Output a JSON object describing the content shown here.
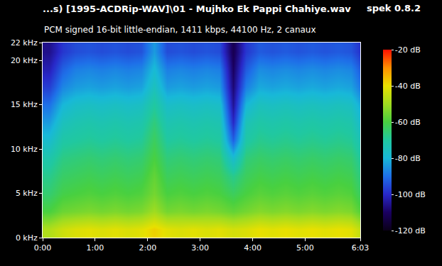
{
  "chart_data": {
    "type": "heatmap",
    "title": "...s) [1995-ACDRip-WAV]\\01 - Mujhko Ek Pappi Chahiye.wav",
    "subtitle": "PCM signed 16-bit little-endian, 1411 kbps, 44100 Hz, 2 canaux",
    "annotations": [
      "spek 0.8.2"
    ],
    "grid": false,
    "x": [
      7.5,
      22.5,
      37.5,
      52.5,
      67.5,
      82.5,
      97.5,
      112.5,
      127.5,
      142.5,
      157.5,
      172.5,
      187.5,
      202.5,
      217.5,
      232.5,
      247.5,
      262.5,
      277.5,
      292.5,
      307.5,
      322.5,
      337.5,
      352.5,
      361.5
    ],
    "y": [
      1,
      3,
      5,
      7,
      9,
      11,
      13,
      15,
      17,
      19,
      21
    ],
    "z": [
      [
        -48,
        -44,
        -42,
        -41,
        -42,
        -41,
        -42,
        -41,
        -38,
        -41,
        -42,
        -41,
        -42,
        -41,
        -43,
        -42,
        -40,
        -41,
        -40,
        -41,
        -40,
        -41,
        -40,
        -41,
        -45
      ],
      [
        -60,
        -56,
        -55,
        -54,
        -55,
        -54,
        -55,
        -54,
        -50,
        -55,
        -54,
        -55,
        -54,
        -55,
        -57,
        -55,
        -53,
        -54,
        -53,
        -54,
        -53,
        -54,
        -53,
        -54,
        -58
      ],
      [
        -65,
        -61,
        -60,
        -59,
        -60,
        -59,
        -60,
        -59,
        -55,
        -60,
        -59,
        -60,
        -59,
        -60,
        -63,
        -60,
        -58,
        -59,
        -58,
        -59,
        -58,
        -59,
        -58,
        -59,
        -63
      ],
      [
        -68,
        -64,
        -63,
        -62,
        -63,
        -62,
        -63,
        -62,
        -57,
        -63,
        -62,
        -63,
        -62,
        -63,
        -68,
        -63,
        -61,
        -62,
        -61,
        -62,
        -61,
        -62,
        -61,
        -62,
        -66
      ],
      [
        -72,
        -67,
        -66,
        -65,
        -66,
        -65,
        -66,
        -65,
        -60,
        -66,
        -65,
        -66,
        -65,
        -66,
        -78,
        -66,
        -64,
        -65,
        -64,
        -65,
        -64,
        -65,
        -64,
        -65,
        -69
      ],
      [
        -78,
        -71,
        -70,
        -69,
        -70,
        -69,
        -70,
        -69,
        -63,
        -70,
        -69,
        -70,
        -69,
        -70,
        -92,
        -71,
        -68,
        -69,
        -68,
        -69,
        -68,
        -69,
        -68,
        -69,
        -73
      ],
      [
        -84,
        -75,
        -73,
        -72,
        -73,
        -72,
        -73,
        -72,
        -66,
        -73,
        -72,
        -73,
        -72,
        -73,
        -100,
        -74,
        -71,
        -72,
        -71,
        -72,
        -71,
        -72,
        -71,
        -72,
        -77
      ],
      [
        -90,
        -80,
        -77,
        -76,
        -77,
        -76,
        -77,
        -76,
        -70,
        -77,
        -76,
        -77,
        -76,
        -77,
        -105,
        -80,
        -75,
        -76,
        -75,
        -76,
        -75,
        -76,
        -75,
        -76,
        -81
      ],
      [
        -97,
        -87,
        -84,
        -83,
        -84,
        -83,
        -84,
        -83,
        -75,
        -84,
        -83,
        -84,
        -83,
        -84,
        -108,
        -88,
        -82,
        -83,
        -82,
        -83,
        -82,
        -83,
        -82,
        -83,
        -88
      ],
      [
        -102,
        -92,
        -88,
        -87,
        -88,
        -87,
        -88,
        -87,
        -79,
        -88,
        -87,
        -88,
        -87,
        -88,
        -110,
        -93,
        -86,
        -87,
        -86,
        -87,
        -86,
        -87,
        -86,
        -87,
        -92
      ],
      [
        -106,
        -98,
        -95,
        -94,
        -95,
        -94,
        -95,
        -94,
        -84,
        -95,
        -94,
        -95,
        -94,
        -95,
        -112,
        -98,
        -93,
        -94,
        -93,
        -94,
        -93,
        -94,
        -93,
        -94,
        -98
      ]
    ],
    "xlim": [
      0,
      363
    ],
    "xticks": [
      {
        "value": 0,
        "label": "0:00"
      },
      {
        "value": 60,
        "label": "1:00"
      },
      {
        "value": 120,
        "label": "2:00"
      },
      {
        "value": 180,
        "label": "3:00"
      },
      {
        "value": 240,
        "label": "4:00"
      },
      {
        "value": 300,
        "label": "5:00"
      },
      {
        "value": 363,
        "label": "6:03"
      }
    ],
    "ylim": [
      0,
      22
    ],
    "yticks": [
      {
        "value": 0,
        "label": "0 kHz"
      },
      {
        "value": 5,
        "label": "5 kHz"
      },
      {
        "value": 10,
        "label": "10 kHz"
      },
      {
        "value": 15,
        "label": "15 kHz"
      },
      {
        "value": 20,
        "label": "20 kHz"
      },
      {
        "value": 22,
        "label": "22 kHz"
      }
    ],
    "colorbar": {
      "range": [
        -120,
        -20
      ],
      "ticks": [
        {
          "value": -20,
          "label": "-20 dB"
        },
        {
          "value": -40,
          "label": "-40 dB"
        },
        {
          "value": -60,
          "label": "-60 dB"
        },
        {
          "value": -80,
          "label": "-80 dB"
        },
        {
          "value": -100,
          "label": "-100 dB"
        },
        {
          "value": -120,
          "label": "-120 dB"
        }
      ]
    }
  }
}
